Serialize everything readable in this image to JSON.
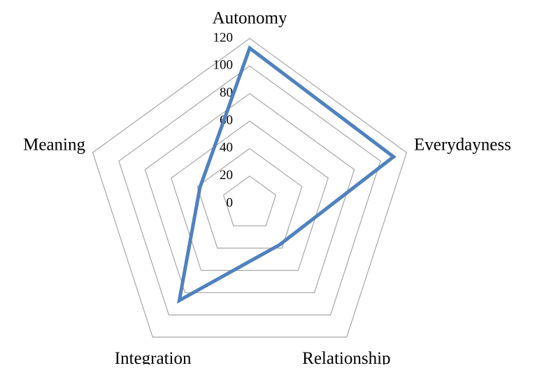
{
  "chart_data": {
    "type": "radar",
    "categories": [
      "Autonomy",
      "Everydayness",
      "Relationship",
      "Integration",
      "Meaning"
    ],
    "series": [
      {
        "color": "#4f81bd",
        "values": [
          113,
          110,
          37,
          87,
          38
        ]
      }
    ],
    "rlim": [
      0,
      120
    ],
    "rticks": [
      0,
      20,
      40,
      60,
      80,
      100,
      120
    ],
    "grid": true
  }
}
